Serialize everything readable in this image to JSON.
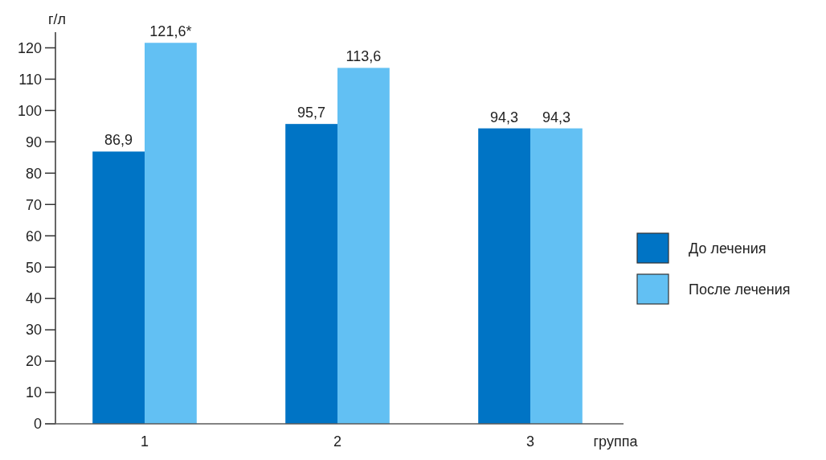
{
  "chart_data": {
    "type": "bar",
    "ylabel": "г/л",
    "xlabel": "группа",
    "categories": [
      "1",
      "2",
      "3"
    ],
    "series": [
      {
        "name": "До лечения",
        "color": "#0074c5",
        "values": [
          86.9,
          95.7,
          94.3
        ],
        "value_labels": [
          "86,9",
          "95,7",
          "94,3"
        ]
      },
      {
        "name": "После лечения",
        "color": "#62c0f3",
        "values": [
          121.6,
          113.6,
          94.3
        ],
        "value_labels": [
          "121,6*",
          "113,6",
          "94,3"
        ]
      }
    ],
    "ylim": [
      0,
      125
    ],
    "yticks": [
      0,
      10,
      20,
      30,
      40,
      50,
      60,
      70,
      80,
      90,
      100,
      110,
      120
    ],
    "legend": "right"
  }
}
